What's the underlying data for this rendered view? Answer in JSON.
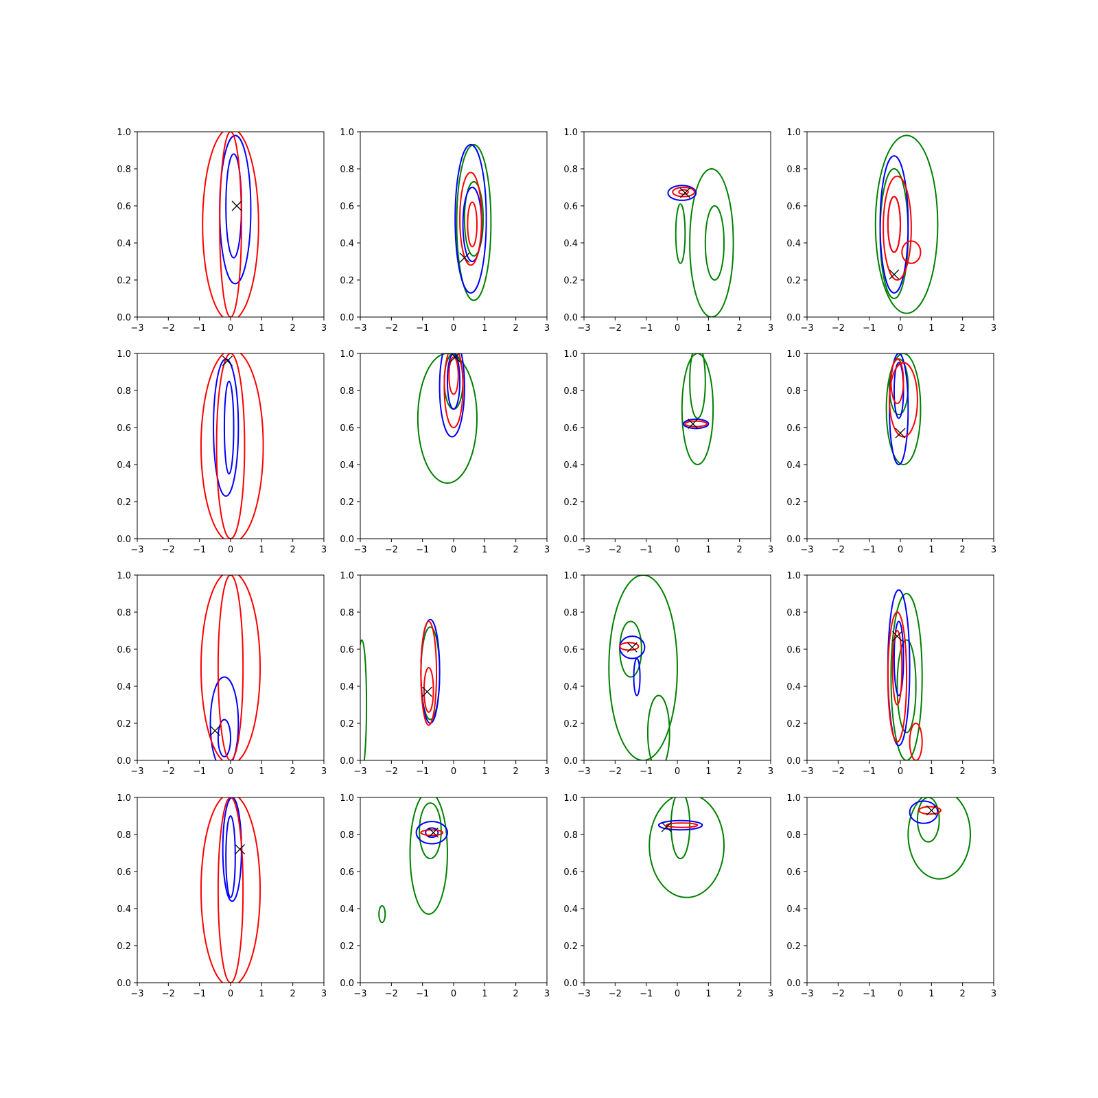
{
  "chart_data": {
    "type": "contour",
    "layout": "4x4 grid of panels",
    "xlim": [
      -3,
      3
    ],
    "ylim": [
      0,
      1
    ],
    "xticks": [
      -3,
      -2,
      -1,
      0,
      1,
      2,
      3
    ],
    "yticks": [
      0.0,
      0.2,
      0.4,
      0.6,
      0.8,
      1.0
    ],
    "xtick_labels": [
      "−3",
      "−2",
      "−1",
      "0",
      "1",
      "2",
      "3"
    ],
    "ytick_labels": [
      "0.0",
      "0.2",
      "0.4",
      "0.6",
      "0.8",
      "1.0"
    ],
    "grid": false,
    "colors": {
      "red": "#ff0000",
      "blue": "#0000ff",
      "green": "#008000",
      "marker": "#000000"
    },
    "panels": [
      {
        "row": 1,
        "col": 1,
        "marker": [
          0.2,
          0.6
        ],
        "contours": {
          "red": [
            {
              "cx": 0.0,
              "cy": 0.5,
              "rx": 0.9,
              "ry": 0.52
            },
            {
              "cx": 0.0,
              "cy": 0.5,
              "rx": 0.35,
              "ry": 0.5
            }
          ],
          "blue": [
            {
              "cx": 0.15,
              "cy": 0.58,
              "rx": 0.5,
              "ry": 0.4
            },
            {
              "cx": 0.1,
              "cy": 0.6,
              "rx": 0.25,
              "ry": 0.28
            }
          ],
          "green": []
        }
      },
      {
        "row": 1,
        "col": 2,
        "marker": [
          0.35,
          0.32
        ],
        "contours": {
          "red": [
            {
              "cx": 0.55,
              "cy": 0.53,
              "rx": 0.35,
              "ry": 0.25
            },
            {
              "cx": 0.6,
              "cy": 0.5,
              "rx": 0.15,
              "ry": 0.12
            }
          ],
          "blue": [
            {
              "cx": 0.55,
              "cy": 0.53,
              "rx": 0.5,
              "ry": 0.4
            },
            {
              "cx": 0.6,
              "cy": 0.5,
              "rx": 0.3,
              "ry": 0.2
            }
          ],
          "green": [
            {
              "cx": 0.65,
              "cy": 0.51,
              "rx": 0.55,
              "ry": 0.42
            },
            {
              "cx": 0.65,
              "cy": 0.53,
              "rx": 0.3,
              "ry": 0.2
            }
          ]
        }
      },
      {
        "row": 1,
        "col": 3,
        "marker": [
          0.25,
          0.67
        ],
        "contours": {
          "red": [
            {
              "cx": 0.2,
              "cy": 0.675,
              "rx": 0.35,
              "ry": 0.025
            },
            {
              "cx": 0.2,
              "cy": 0.675,
              "rx": 0.15,
              "ry": 0.012
            }
          ],
          "blue": [
            {
              "cx": 0.15,
              "cy": 0.67,
              "rx": 0.45,
              "ry": 0.04
            }
          ],
          "green": [
            {
              "cx": 1.1,
              "cy": 0.4,
              "rx": 0.7,
              "ry": 0.4
            },
            {
              "cx": 1.2,
              "cy": 0.4,
              "rx": 0.3,
              "ry": 0.2
            },
            {
              "cx": 0.1,
              "cy": 0.45,
              "rx": 0.15,
              "ry": 0.16
            }
          ]
        }
      },
      {
        "row": 1,
        "col": 4,
        "marker": [
          -0.2,
          0.23
        ],
        "contours": {
          "red": [
            {
              "cx": -0.1,
              "cy": 0.48,
              "rx": 0.45,
              "ry": 0.28
            },
            {
              "cx": -0.2,
              "cy": 0.5,
              "rx": 0.2,
              "ry": 0.15
            },
            {
              "cx": 0.35,
              "cy": 0.35,
              "rx": 0.3,
              "ry": 0.06
            }
          ],
          "blue": [
            {
              "cx": -0.2,
              "cy": 0.5,
              "rx": 0.45,
              "ry": 0.37
            },
            {
              "cx": -0.2,
              "cy": 0.5,
              "rx": 0.2,
              "ry": 0.15
            }
          ],
          "green": [
            {
              "cx": 0.2,
              "cy": 0.5,
              "rx": 1.0,
              "ry": 0.48
            },
            {
              "cx": -0.2,
              "cy": 0.45,
              "rx": 0.45,
              "ry": 0.35
            }
          ]
        }
      },
      {
        "row": 2,
        "col": 1,
        "marker": [
          -0.1,
          0.96
        ],
        "contours": {
          "red": [
            {
              "cx": 0.05,
              "cy": 0.5,
              "rx": 1.0,
              "ry": 0.52
            },
            {
              "cx": 0.0,
              "cy": 0.5,
              "rx": 0.45,
              "ry": 0.5
            }
          ],
          "blue": [
            {
              "cx": -0.15,
              "cy": 0.6,
              "rx": 0.4,
              "ry": 0.37
            },
            {
              "cx": -0.05,
              "cy": 0.6,
              "rx": 0.15,
              "ry": 0.25
            }
          ],
          "green": []
        }
      },
      {
        "row": 2,
        "col": 3,
        "marker": [
          0.5,
          0.62
        ],
        "contours": {
          "red": [
            {
              "cx": 0.6,
              "cy": 0.62,
              "rx": 0.35,
              "ry": 0.015
            }
          ],
          "blue": [
            {
              "cx": 0.6,
              "cy": 0.62,
              "rx": 0.4,
              "ry": 0.025
            }
          ],
          "green": [
            {
              "cx": 0.65,
              "cy": 0.7,
              "rx": 0.5,
              "ry": 0.3
            },
            {
              "cx": 0.65,
              "cy": 0.85,
              "rx": 0.25,
              "ry": 0.2
            }
          ]
        }
      },
      {
        "row": 2,
        "col": 2,
        "marker": [
          0.05,
          0.98
        ],
        "contours": {
          "red": [
            {
              "cx": 0.0,
              "cy": 0.82,
              "rx": 0.3,
              "ry": 0.22
            },
            {
              "cx": 0.0,
              "cy": 0.88,
              "rx": 0.15,
              "ry": 0.1
            }
          ],
          "blue": [
            {
              "cx": -0.05,
              "cy": 0.82,
              "rx": 0.4,
              "ry": 0.27
            },
            {
              "cx": 0.0,
              "cy": 0.85,
              "rx": 0.2,
              "ry": 0.15
            }
          ],
          "green": [
            {
              "cx": -0.2,
              "cy": 0.65,
              "rx": 0.95,
              "ry": 0.35
            },
            {
              "cx": 0.0,
              "cy": 0.85,
              "rx": 0.3,
              "ry": 0.15
            }
          ]
        }
      },
      {
        "row": 2,
        "col": 4,
        "marker": [
          0.0,
          0.57
        ],
        "contours": {
          "red": [
            {
              "cx": 0.1,
              "cy": 0.75,
              "rx": 0.45,
              "ry": 0.2
            },
            {
              "cx": -0.1,
              "cy": 0.85,
              "rx": 0.2,
              "ry": 0.12
            }
          ],
          "blue": [
            {
              "cx": -0.05,
              "cy": 0.7,
              "rx": 0.3,
              "ry": 0.3
            },
            {
              "cx": -0.05,
              "cy": 0.8,
              "rx": 0.15,
              "ry": 0.15
            }
          ],
          "green": [
            {
              "cx": 0.1,
              "cy": 0.7,
              "rx": 0.55,
              "ry": 0.3
            },
            {
              "cx": -0.05,
              "cy": 0.82,
              "rx": 0.3,
              "ry": 0.15
            }
          ]
        }
      },
      {
        "row": 3,
        "col": 1,
        "marker": [
          -0.5,
          0.16
        ],
        "contours": {
          "red": [
            {
              "cx": 0.0,
              "cy": 0.5,
              "rx": 0.95,
              "ry": 0.52
            },
            {
              "cx": 0.0,
              "cy": 0.5,
              "rx": 0.4,
              "ry": 0.5
            }
          ],
          "blue": [
            {
              "cx": -0.2,
              "cy": 0.2,
              "rx": 0.45,
              "ry": 0.25
            },
            {
              "cx": -0.2,
              "cy": 0.12,
              "rx": 0.2,
              "ry": 0.1
            }
          ],
          "green": []
        }
      },
      {
        "row": 3,
        "col": 2,
        "marker": [
          -0.85,
          0.37
        ],
        "contours": {
          "red": [
            {
              "cx": -0.8,
              "cy": 0.47,
              "rx": 0.25,
              "ry": 0.28
            },
            {
              "cx": -0.8,
              "cy": 0.38,
              "rx": 0.15,
              "ry": 0.12
            }
          ],
          "blue": [
            {
              "cx": -0.75,
              "cy": 0.48,
              "rx": 0.3,
              "ry": 0.28
            }
          ],
          "green": [
            {
              "cx": -0.75,
              "cy": 0.47,
              "rx": 0.3,
              "ry": 0.25
            },
            {
              "cx": -2.95,
              "cy": 0.3,
              "rx": 0.15,
              "ry": 0.35
            }
          ]
        }
      },
      {
        "row": 3,
        "col": 3,
        "marker": [
          -1.45,
          0.61
        ],
        "contours": {
          "red": [
            {
              "cx": -1.55,
              "cy": 0.615,
              "rx": 0.3,
              "ry": 0.02
            }
          ],
          "blue": [
            {
              "cx": -1.45,
              "cy": 0.61,
              "rx": 0.4,
              "ry": 0.06
            },
            {
              "cx": -1.3,
              "cy": 0.45,
              "rx": 0.1,
              "ry": 0.1
            }
          ],
          "green": [
            {
              "cx": -1.1,
              "cy": 0.5,
              "rx": 1.1,
              "ry": 0.5
            },
            {
              "cx": -1.5,
              "cy": 0.6,
              "rx": 0.35,
              "ry": 0.15
            },
            {
              "cx": -0.6,
              "cy": 0.15,
              "rx": 0.35,
              "ry": 0.2
            }
          ]
        }
      },
      {
        "row": 3,
        "col": 4,
        "marker": [
          -0.1,
          0.67
        ],
        "contours": {
          "red": [
            {
              "cx": -0.1,
              "cy": 0.45,
              "rx": 0.3,
              "ry": 0.35
            },
            {
              "cx": -0.1,
              "cy": 0.5,
              "rx": 0.15,
              "ry": 0.2
            },
            {
              "cx": 0.5,
              "cy": 0.1,
              "rx": 0.2,
              "ry": 0.1
            }
          ],
          "blue": [
            {
              "cx": -0.05,
              "cy": 0.5,
              "rx": 0.35,
              "ry": 0.42
            },
            {
              "cx": -0.05,
              "cy": 0.55,
              "rx": 0.15,
              "ry": 0.2
            }
          ],
          "green": [
            {
              "cx": 0.2,
              "cy": 0.45,
              "rx": 0.5,
              "ry": 0.45
            },
            {
              "cx": 0.2,
              "cy": 0.4,
              "rx": 0.3,
              "ry": 0.25
            }
          ]
        }
      },
      {
        "row": 4,
        "col": 1,
        "marker": [
          0.3,
          0.72
        ],
        "contours": {
          "red": [
            {
              "cx": 0.0,
              "cy": 0.5,
              "rx": 0.95,
              "ry": 0.52
            },
            {
              "cx": 0.0,
              "cy": 0.5,
              "rx": 0.4,
              "ry": 0.5
            }
          ],
          "blue": [
            {
              "cx": 0.05,
              "cy": 0.72,
              "rx": 0.3,
              "ry": 0.28
            },
            {
              "cx": 0.0,
              "cy": 0.68,
              "rx": 0.15,
              "ry": 0.22
            }
          ],
          "green": []
        }
      },
      {
        "row": 4,
        "col": 2,
        "marker": [
          -0.65,
          0.81
        ],
        "contours": {
          "red": [
            {
              "cx": -0.7,
              "cy": 0.81,
              "rx": 0.35,
              "ry": 0.015
            }
          ],
          "blue": [
            {
              "cx": -0.7,
              "cy": 0.81,
              "rx": 0.5,
              "ry": 0.06
            },
            {
              "cx": -0.7,
              "cy": 0.81,
              "rx": 0.2,
              "ry": 0.025
            }
          ],
          "green": [
            {
              "cx": -0.8,
              "cy": 0.7,
              "rx": 0.6,
              "ry": 0.33
            },
            {
              "cx": -0.75,
              "cy": 0.82,
              "rx": 0.35,
              "ry": 0.15
            },
            {
              "cx": -2.3,
              "cy": 0.37,
              "rx": 0.1,
              "ry": 0.045
            }
          ]
        }
      },
      {
        "row": 4,
        "col": 3,
        "marker": [
          -0.35,
          0.84
        ],
        "contours": {
          "red": [
            {
              "cx": 0.15,
              "cy": 0.85,
              "rx": 0.5,
              "ry": 0.012
            }
          ],
          "blue": [
            {
              "cx": 0.1,
              "cy": 0.85,
              "rx": 0.7,
              "ry": 0.025
            }
          ],
          "green": [
            {
              "cx": 0.3,
              "cy": 0.74,
              "rx": 1.2,
              "ry": 0.28
            },
            {
              "cx": 0.1,
              "cy": 0.85,
              "rx": 0.3,
              "ry": 0.18
            }
          ]
        }
      },
      {
        "row": 4,
        "col": 4,
        "marker": [
          1.0,
          0.93
        ],
        "contours": {
          "red": [
            {
              "cx": 0.95,
              "cy": 0.93,
              "rx": 0.35,
              "ry": 0.02
            }
          ],
          "blue": [
            {
              "cx": 0.75,
              "cy": 0.92,
              "rx": 0.45,
              "ry": 0.06
            }
          ],
          "green": [
            {
              "cx": 1.25,
              "cy": 0.8,
              "rx": 1.0,
              "ry": 0.24
            },
            {
              "cx": 0.9,
              "cy": 0.88,
              "rx": 0.35,
              "ry": 0.12
            }
          ]
        }
      }
    ]
  }
}
